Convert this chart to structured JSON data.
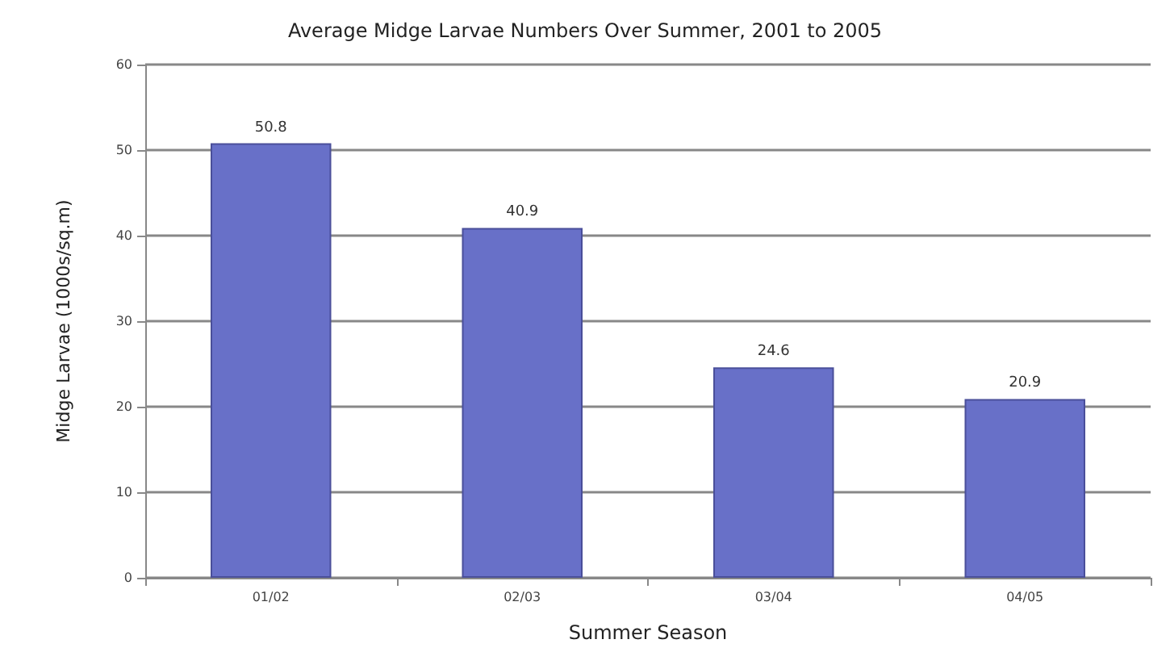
{
  "chart_data": {
    "type": "bar",
    "title": "Average Midge Larvae Numbers Over Summer, 2001 to 2005",
    "xlabel": "Summer Season",
    "ylabel": "Midge Larvae (1000s/sq.m)",
    "categories": [
      "01/02",
      "02/03",
      "03/04",
      "04/05"
    ],
    "values": [
      50.8,
      40.9,
      24.6,
      20.9
    ],
    "color": "#6870c8",
    "ylim": [
      0,
      60
    ],
    "yticks": [
      0,
      10,
      20,
      30,
      40,
      50,
      60
    ],
    "grid": "y",
    "data_labels": true
  }
}
